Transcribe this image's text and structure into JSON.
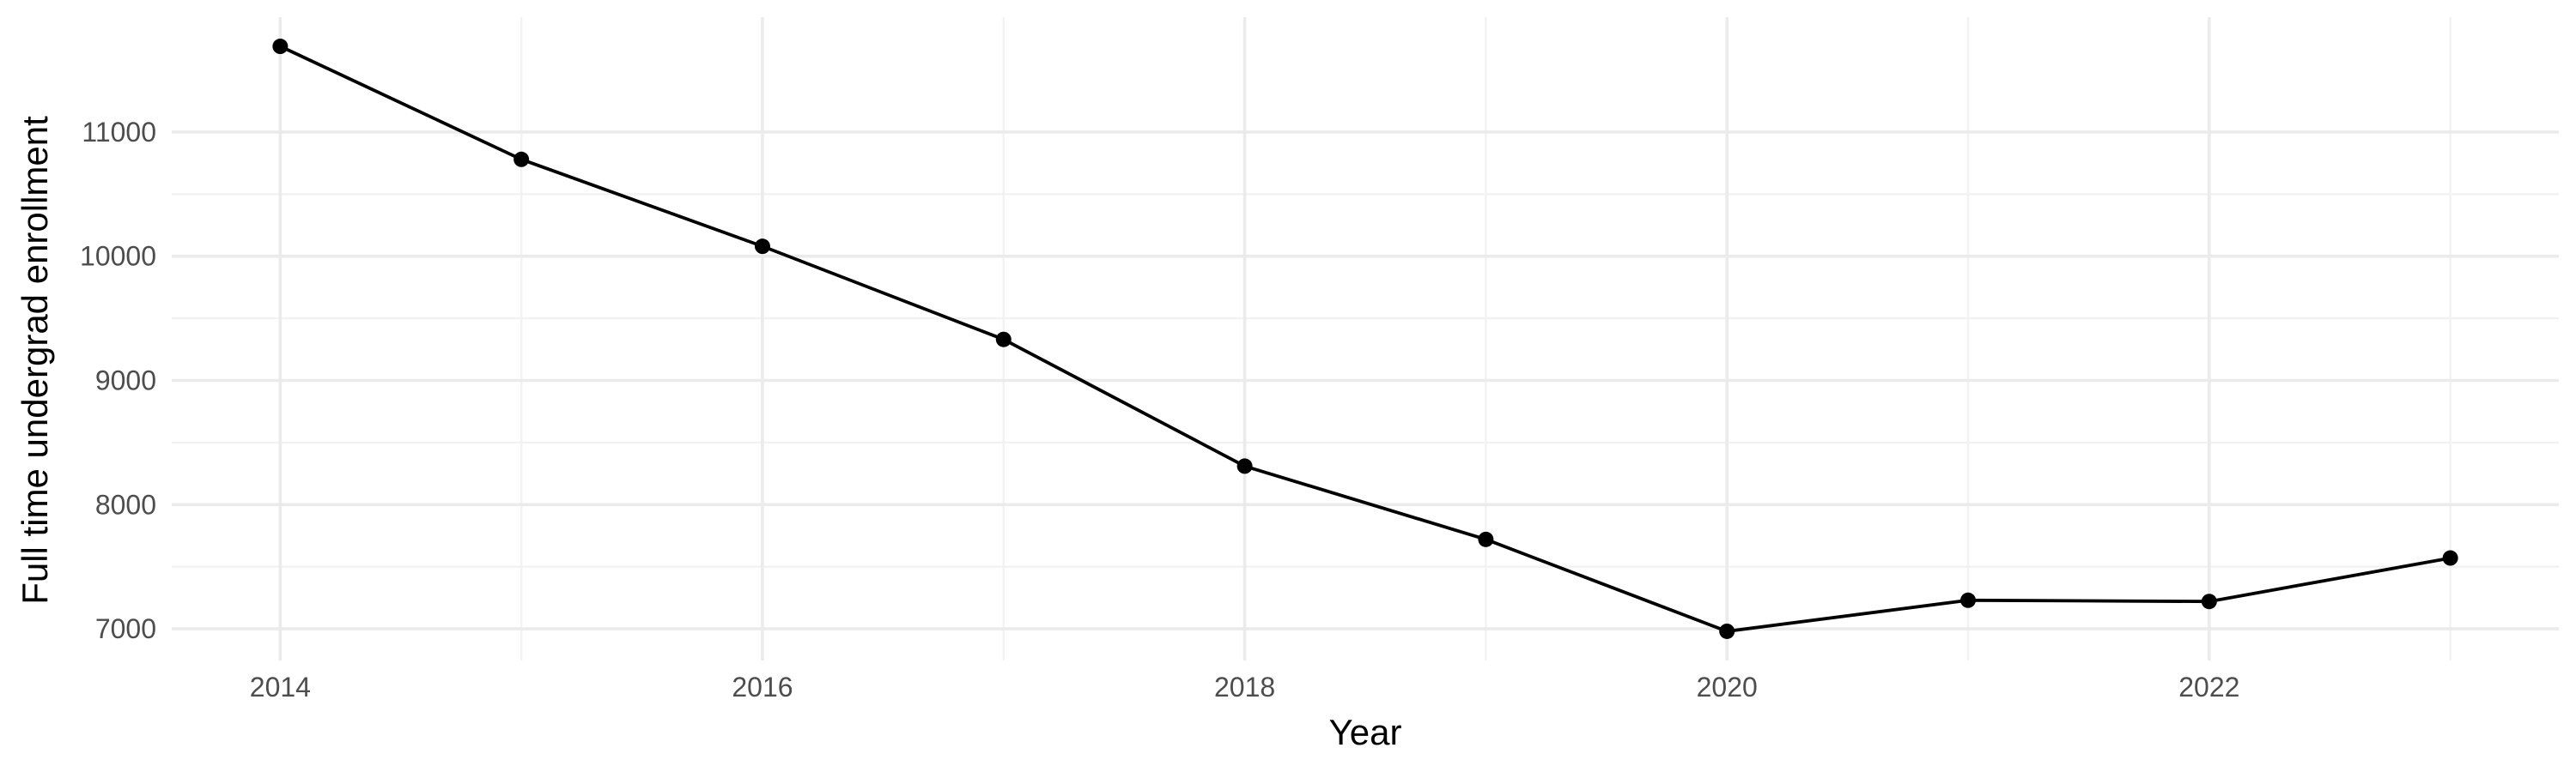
{
  "chart_data": {
    "type": "line",
    "title": "",
    "xlabel": "Year",
    "ylabel": "Full time undergrad enrollment",
    "x": [
      2014,
      2015,
      2016,
      2017,
      2018,
      2019,
      2020,
      2021,
      2022,
      2023
    ],
    "series": [
      {
        "values": [
          11690,
          10780,
          10080,
          9330,
          8310,
          7720,
          6980,
          7230,
          7220,
          7570
        ]
      }
    ],
    "xlim": [
      2013.55,
      2023.45
    ],
    "ylim": [
      6745,
      11925
    ],
    "x_ticks": [
      2014,
      2016,
      2018,
      2020,
      2022
    ],
    "x_tick_labels": [
      "2014",
      "2016",
      "2018",
      "2020",
      "2022"
    ],
    "y_ticks": [
      7000,
      8000,
      9000,
      10000,
      11000
    ],
    "y_tick_labels": [
      "7000",
      "8000",
      "9000",
      "10000",
      "11000"
    ],
    "grid": true,
    "legend": "none",
    "line_color": "#000000",
    "point_color": "#000000",
    "grid_color": "#ebebeb"
  }
}
